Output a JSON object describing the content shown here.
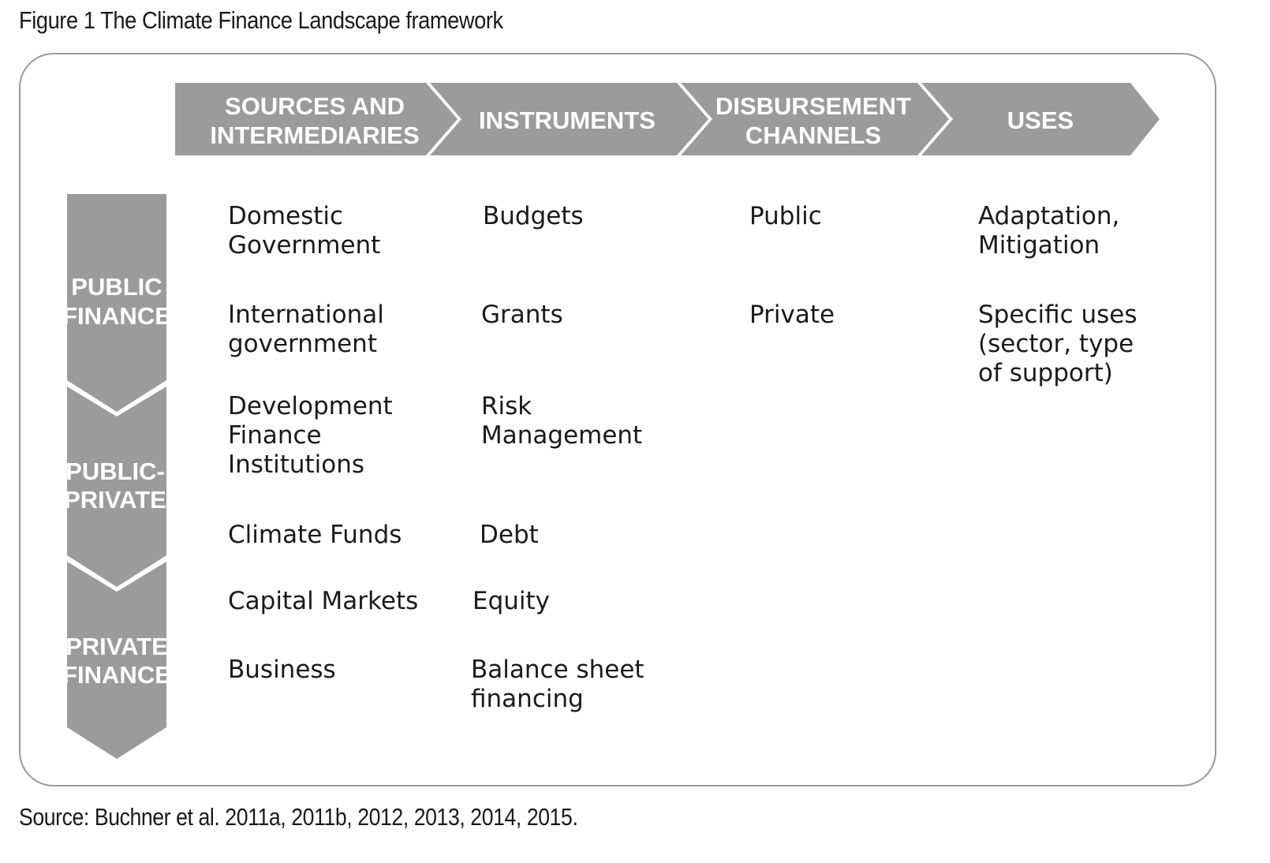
{
  "title": "Figure 1  The Climate Finance Landscape framework",
  "source": "Source: Buchner et al. 2011a, 2011b, 2012, 2013, 2014, 2015.",
  "header": {
    "sources": [
      "SOURCES AND",
      "INTERMEDIARIES"
    ],
    "instruments": [
      "INSTRUMENTS"
    ],
    "disbursement": [
      "DISBURSEMENT",
      "CHANNELS"
    ],
    "uses": [
      "USES"
    ]
  },
  "side": {
    "public": [
      "PUBLIC",
      "FINANCE"
    ],
    "public_private": [
      "PUBLIC-",
      "PRIVATE"
    ],
    "private": [
      "PRIVATE",
      "FINANCE"
    ]
  },
  "columns": {
    "sources": [
      "Domestic\nGovernment",
      "International\ngovernment",
      "Development\nFinance\nInstitutions",
      "Climate Funds",
      "Capital Markets",
      "Business"
    ],
    "instruments": [
      "Budgets",
      "Grants",
      "Risk\nManagement",
      "Debt",
      "Equity",
      "Balance sheet\nfinancing"
    ],
    "disbursement": [
      "Public",
      "Private"
    ],
    "uses": [
      "Adaptation,\nMitigation",
      "Specific uses\n(sector, type\nof support)"
    ]
  },
  "colors": {
    "shape_fill": "#9b9b9b",
    "frame": "#9a9a9a",
    "text": "#1a1a1a"
  }
}
